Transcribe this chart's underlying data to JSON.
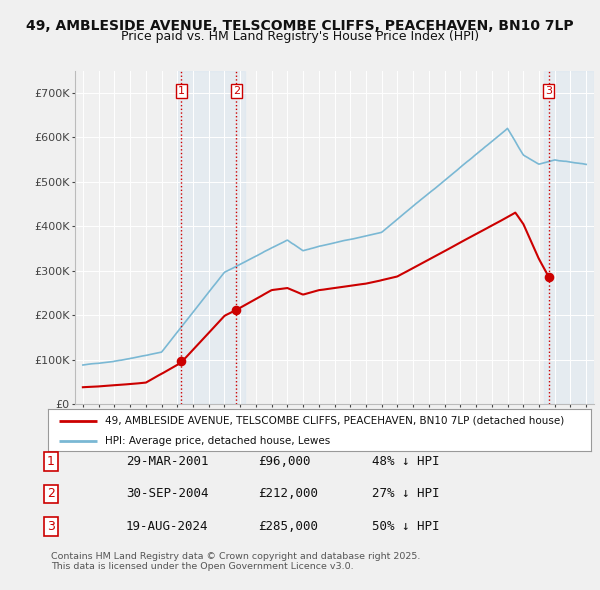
{
  "title": "49, AMBLESIDE AVENUE, TELSCOMBE CLIFFS, PEACEHAVEN, BN10 7LP",
  "subtitle": "Price paid vs. HM Land Registry's House Price Index (HPI)",
  "title_fontsize": 10,
  "subtitle_fontsize": 9,
  "background_color": "#f0f0f0",
  "plot_bg_color": "#f0f0f0",
  "hpi_color": "#7ab8d4",
  "price_color": "#cc0000",
  "ylim": [
    0,
    750000
  ],
  "yticks": [
    0,
    100000,
    200000,
    300000,
    400000,
    500000,
    600000,
    700000
  ],
  "ytick_labels": [
    "£0",
    "£100K",
    "£200K",
    "£300K",
    "£400K",
    "£500K",
    "£600K",
    "£700K"
  ],
  "sales": [
    {
      "date_num": 2001.24,
      "price": 96000,
      "label": "1"
    },
    {
      "date_num": 2004.75,
      "price": 212000,
      "label": "2"
    },
    {
      "date_num": 2024.63,
      "price": 285000,
      "label": "3"
    }
  ],
  "vline_color": "#cc0000",
  "vline_shade_color": "#c8dff0",
  "legend_items": [
    {
      "label": "49, AMBLESIDE AVENUE, TELSCOMBE CLIFFS, PEACEHAVEN, BN10 7LP (detached house)",
      "color": "#cc0000"
    },
    {
      "label": "HPI: Average price, detached house, Lewes",
      "color": "#7ab8d4"
    }
  ],
  "footer": "Contains HM Land Registry data © Crown copyright and database right 2025.\nThis data is licensed under the Open Government Licence v3.0.",
  "table_rows": [
    [
      "1",
      "29-MAR-2001",
      "£96,000",
      "48% ↓ HPI"
    ],
    [
      "2",
      "30-SEP-2004",
      "£212,000",
      "27% ↓ HPI"
    ],
    [
      "3",
      "19-AUG-2024",
      "£285,000",
      "50% ↓ HPI"
    ]
  ]
}
